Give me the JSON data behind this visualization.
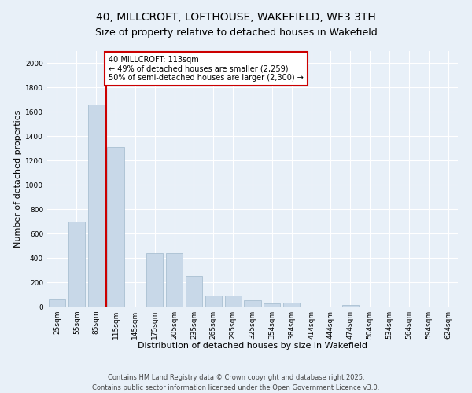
{
  "title": "40, MILLCROFT, LOFTHOUSE, WAKEFIELD, WF3 3TH",
  "subtitle": "Size of property relative to detached houses in Wakefield",
  "xlabel": "Distribution of detached houses by size in Wakefield",
  "ylabel": "Number of detached properties",
  "categories": [
    "25sqm",
    "55sqm",
    "85sqm",
    "115sqm",
    "145sqm",
    "175sqm",
    "205sqm",
    "235sqm",
    "265sqm",
    "295sqm",
    "325sqm",
    "354sqm",
    "384sqm",
    "414sqm",
    "444sqm",
    "474sqm",
    "504sqm",
    "534sqm",
    "564sqm",
    "594sqm",
    "624sqm"
  ],
  "values": [
    60,
    700,
    1660,
    1310,
    0,
    440,
    440,
    250,
    90,
    90,
    50,
    25,
    30,
    0,
    0,
    15,
    0,
    0,
    0,
    0,
    0
  ],
  "bar_color": "#c8d8e8",
  "bar_edgecolor": "#a0b8cc",
  "vline_color": "#cc0000",
  "vline_x": 2.5,
  "annotation_text": "40 MILLCROFT: 113sqm\n← 49% of detached houses are smaller (2,259)\n50% of semi-detached houses are larger (2,300) →",
  "annotation_box_edgecolor": "#cc0000",
  "annotation_box_facecolor": "#ffffff",
  "ylim": [
    0,
    2100
  ],
  "yticks": [
    0,
    200,
    400,
    600,
    800,
    1000,
    1200,
    1400,
    1600,
    1800,
    2000
  ],
  "footer_line1": "Contains HM Land Registry data © Crown copyright and database right 2025.",
  "footer_line2": "Contains public sector information licensed under the Open Government Licence v3.0.",
  "bg_color": "#e8f0f8",
  "plot_bg_color": "#e8f0f8",
  "grid_color": "#ffffff",
  "title_fontsize": 10,
  "subtitle_fontsize": 9,
  "axis_label_fontsize": 8,
  "tick_fontsize": 6.5,
  "footer_fontsize": 6,
  "annotation_fontsize": 7
}
